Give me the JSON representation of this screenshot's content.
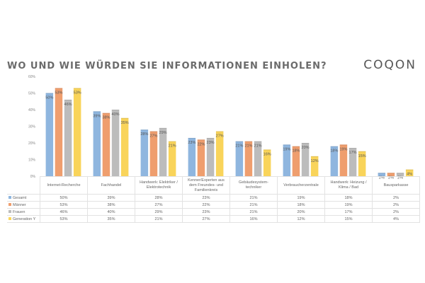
{
  "header": {
    "title": "WO UND WIE WÜRDEN SIE INFORMATIONEN EINHOLEN?",
    "logo": "COQON"
  },
  "chart_data": {
    "type": "bar",
    "title": "WO UND WIE WÜRDEN SIE INFORMATIONEN EINHOLEN?",
    "xlabel": "",
    "ylabel": "",
    "ylim": [
      0,
      60
    ],
    "yticks": [
      "0%",
      "10%",
      "20%",
      "30%",
      "40%",
      "50%",
      "60%"
    ],
    "grid": false,
    "legend": "table-left",
    "categories": [
      "Internet-Recherche",
      "Fachhandel",
      "Handwerk: Elektriker / Elektrotechnik",
      "Kenner/Experten aus dem Freundes- und Familienkreis",
      "Gebäudesystem-techniker",
      "Verbraucherzentrale",
      "Handwerk: Heizung / Klima / Bad",
      "Bausparkasse"
    ],
    "category_lines": [
      [
        "Internet-Recherche"
      ],
      [
        "Fachhandel"
      ],
      [
        "Handwerk: Elektriker /",
        "Elektrotechnik"
      ],
      [
        "Kenner/Experten aus",
        "dem Freundes- und",
        "Familienkreis"
      ],
      [
        "Gebäudesystem-",
        "techniker"
      ],
      [
        "Verbraucherzentrale"
      ],
      [
        "Handwerk: Heizung /",
        "Klima / Bad"
      ],
      [
        "Bausparkasse"
      ]
    ],
    "series": [
      {
        "name": "Gesamt",
        "color": "#8fb6df",
        "values": [
          50,
          39,
          28,
          23,
          21,
          19,
          18,
          2
        ]
      },
      {
        "name": "Männer",
        "color": "#ef9e6e",
        "values": [
          53,
          38,
          27,
          22,
          21,
          18,
          19,
          2
        ]
      },
      {
        "name": "Frauen",
        "color": "#bcbcbc",
        "values": [
          46,
          40,
          29,
          23,
          21,
          20,
          17,
          2
        ]
      },
      {
        "name": "Generation Y",
        "color": "#f9d45a",
        "values": [
          53,
          35,
          21,
          27,
          16,
          12,
          15,
          4
        ]
      }
    ]
  }
}
